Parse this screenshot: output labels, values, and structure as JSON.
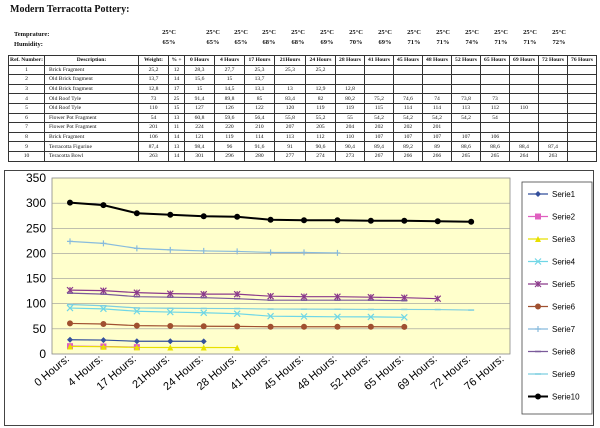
{
  "page": {
    "title": "Modern Terracotta Pottery:",
    "temperature_label": "Temprature:",
    "humidity_label": "Humidity:"
  },
  "conditions": {
    "temps": [
      "25°C",
      "25°C",
      "25°C",
      "25°C",
      "25°C",
      "25°C",
      "25°C",
      "25°C",
      "25°C",
      "25°C",
      "25°C",
      "25°C",
      "25°C",
      "25°C"
    ],
    "humidity": [
      "65%",
      "65%",
      "65%",
      "68%",
      "68%",
      "69%",
      "70%",
      "69%",
      "71%",
      "71%",
      "74%",
      "71%",
      "71%",
      "72%"
    ]
  },
  "table": {
    "headers": [
      "Ref. Number:",
      "Description:",
      "Weight:",
      "% +",
      "0 Hours",
      "4 Hours",
      "17 Hours",
      "21Hours",
      "24 Hours",
      "28 Hours",
      "41 Hours",
      "45 Hours",
      "48 Hours",
      "52 Hours",
      "65 Hours",
      "69 Hours",
      "72 Hours",
      "76 Hours"
    ],
    "rows": [
      [
        "1",
        "Brick Fragment",
        "25,2",
        "12",
        "28,3",
        "27,7",
        "25,3",
        "25,3",
        "25,2",
        "",
        "",
        "",
        "",
        "",
        "",
        "",
        "",
        ""
      ],
      [
        "2",
        "Old Brick fragment",
        "13,7",
        "14",
        "15,6",
        "15",
        "13,7",
        "",
        "",
        "",
        "",
        "",
        "",
        "",
        "",
        "",
        "",
        ""
      ],
      [
        "3",
        "Old Brick fragment",
        "12,8",
        "17",
        "15",
        "14,5",
        "13,1",
        "13",
        "12,9",
        "12,8",
        "",
        "",
        "",
        "",
        "",
        "",
        "",
        ""
      ],
      [
        "4",
        "Old Roof Tyle",
        "73",
        "25",
        "91,4",
        "89,8",
        "85",
        "83,4",
        "82",
        "80,2",
        "75,2",
        "74,6",
        "74",
        "73,8",
        "73",
        "",
        "",
        ""
      ],
      [
        "5",
        "Old Roof Tyle",
        "110",
        "15",
        "127",
        "126",
        "122",
        "120",
        "119",
        "119",
        "115",
        "114",
        "114",
        "113",
        "112",
        "110",
        "",
        ""
      ],
      [
        "6",
        "Flower Pot Fragment",
        "54",
        "13",
        "60,8",
        "59,6",
        "56,4",
        "55,8",
        "55,2",
        "55",
        "54,2",
        "54,2",
        "54,2",
        "54,2",
        "54",
        "",
        "",
        ""
      ],
      [
        "7",
        "Flower Pot Fragment",
        "201",
        "11",
        "224",
        "220",
        "210",
        "207",
        "205",
        "204",
        "202",
        "202",
        "201",
        "",
        "",
        "",
        "",
        ""
      ],
      [
        "8",
        "Brick Fragment",
        "106",
        "14",
        "121",
        "119",
        "114",
        "113",
        "112",
        "110",
        "107",
        "107",
        "107",
        "107",
        "106",
        "",
        "",
        ""
      ],
      [
        "9",
        "Terracotta Figurine",
        "87,4",
        "13",
        "98,4",
        "96",
        "91,6",
        "91",
        "90,6",
        "90,4",
        "89,4",
        "89,2",
        "89",
        "88,6",
        "88,6",
        "88,4",
        "87,4",
        ""
      ],
      [
        "10",
        "Teracotta Bowl",
        "263",
        "14",
        "301",
        "296",
        "280",
        "277",
        "274",
        "273",
        "267",
        "266",
        "266",
        "265",
        "265",
        "264",
        "263",
        ""
      ]
    ]
  },
  "chart_data": {
    "type": "line",
    "categories": [
      "0 Hours:",
      "4 Hours:",
      "17 Hours:",
      "21Hours:",
      "24 Hours:",
      "28 Hours:",
      "41 Hours:",
      "45 Hours:",
      "48 Hours:",
      "52 Hours:",
      "65 Hours:",
      "69 Hours:",
      "72 Hours:",
      "76 Hours:"
    ],
    "ylim": [
      0,
      350
    ],
    "yticks": [
      "0",
      "50",
      "100",
      "150",
      "200",
      "250",
      "300",
      "350"
    ],
    "grid": true,
    "legend_position": "right",
    "plot_bg": "#ffffcc",
    "series": [
      {
        "name": "Serie1",
        "color": "#334f9c",
        "marker": "diamond",
        "values": [
          28.3,
          27.7,
          25.3,
          25.3,
          25.2,
          null,
          null,
          null,
          null,
          null,
          null,
          null,
          null,
          null
        ]
      },
      {
        "name": "Serie2",
        "color": "#e060c0",
        "marker": "square",
        "values": [
          15.6,
          15,
          13.7,
          null,
          null,
          null,
          null,
          null,
          null,
          null,
          null,
          null,
          null,
          null
        ]
      },
      {
        "name": "Serie3",
        "color": "#e8e000",
        "marker": "triangle",
        "values": [
          15,
          14.5,
          13.1,
          13,
          12.9,
          12.8,
          null,
          null,
          null,
          null,
          null,
          null,
          null,
          null
        ]
      },
      {
        "name": "Serie4",
        "color": "#6fd6e6",
        "marker": "x",
        "values": [
          91.4,
          89.8,
          85,
          83.4,
          82,
          80.2,
          75.2,
          74.6,
          74,
          73.8,
          73,
          null,
          null,
          null
        ]
      },
      {
        "name": "Serie5",
        "color": "#8b3a8b",
        "marker": "star",
        "values": [
          127,
          126,
          122,
          120,
          119,
          119,
          115,
          114,
          114,
          113,
          112,
          110,
          null,
          null
        ]
      },
      {
        "name": "Serie6",
        "color": "#a05030",
        "marker": "circle",
        "values": [
          60.8,
          59.6,
          56.4,
          55.8,
          55.2,
          55,
          54.2,
          54.2,
          54.2,
          54.2,
          54,
          null,
          null,
          null
        ]
      },
      {
        "name": "Serie7",
        "color": "#88bbdd",
        "marker": "plus",
        "values": [
          224,
          220,
          210,
          207,
          205,
          204,
          202,
          202,
          201,
          null,
          null,
          null,
          null,
          null
        ]
      },
      {
        "name": "Serie8",
        "color": "#7a5a9a",
        "marker": "dash",
        "values": [
          121,
          119,
          114,
          113,
          112,
          110,
          107,
          107,
          107,
          107,
          106,
          null,
          null,
          null
        ]
      },
      {
        "name": "Serie9",
        "color": "#7ecfe0",
        "marker": "dash",
        "values": [
          98.4,
          96,
          91.6,
          91,
          90.6,
          90.4,
          89.4,
          89.2,
          89,
          88.6,
          88.6,
          88.4,
          87.4,
          null
        ]
      },
      {
        "name": "Serie10",
        "color": "#000000",
        "marker": "circle",
        "values": [
          301,
          296,
          280,
          277,
          274,
          273,
          267,
          266,
          266,
          265,
          265,
          264,
          263,
          null
        ]
      }
    ]
  }
}
